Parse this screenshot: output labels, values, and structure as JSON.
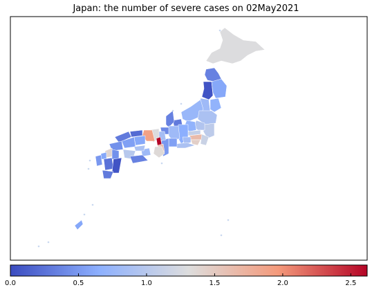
{
  "chart_data": {
    "type": "heatmap",
    "title": "Japan: the number of severe cases on 02May2021",
    "colormap": "coolwarm",
    "colorbar": {
      "range": [
        0.0,
        2.62
      ],
      "ticks": [
        0.0,
        0.5,
        1.0,
        1.5,
        2.0,
        2.5
      ],
      "tick_labels": [
        "0.0",
        "0.5",
        "1.0",
        "1.5",
        "2.0",
        "2.5"
      ],
      "orientation": "horizontal",
      "placement": "bottom"
    },
    "regions": [
      {
        "name": "Hokkaido",
        "value": 1.3
      },
      {
        "name": "Aomori",
        "value": 0.35
      },
      {
        "name": "Akita",
        "value": 0.05
      },
      {
        "name": "Iwate",
        "value": 0.6
      },
      {
        "name": "Yamagata",
        "value": 0.8
      },
      {
        "name": "Miyagi",
        "value": 0.7
      },
      {
        "name": "Niigata",
        "value": 0.75
      },
      {
        "name": "Fukushima",
        "value": 0.9
      },
      {
        "name": "Ibaraki",
        "value": 1.05
      },
      {
        "name": "Tochigi",
        "value": 0.95
      },
      {
        "name": "Gunma",
        "value": 0.7
      },
      {
        "name": "Saitama",
        "value": 1.1
      },
      {
        "name": "Tokyo",
        "value": 1.65
      },
      {
        "name": "Chiba",
        "value": 1.15
      },
      {
        "name": "Kanagawa",
        "value": 1.45
      },
      {
        "name": "Toyama",
        "value": 0.3
      },
      {
        "name": "Ishikawa",
        "value": 0.35
      },
      {
        "name": "Fukui",
        "value": 0.4
      },
      {
        "name": "Nagano",
        "value": 0.65
      },
      {
        "name": "Yamanashi",
        "value": 0.85
      },
      {
        "name": "Gifu",
        "value": 0.8
      },
      {
        "name": "Shizuoka",
        "value": 0.9
      },
      {
        "name": "Aichi",
        "value": 0.55
      },
      {
        "name": "Mie",
        "value": 0.5
      },
      {
        "name": "Shiga",
        "value": 0.85
      },
      {
        "name": "Kyoto",
        "value": 1.3
      },
      {
        "name": "Osaka",
        "value": 2.62
      },
      {
        "name": "Hyogo",
        "value": 1.9
      },
      {
        "name": "Nara",
        "value": 1.6
      },
      {
        "name": "Wakayama",
        "value": 1.35
      },
      {
        "name": "Tottori",
        "value": 0.2
      },
      {
        "name": "Shimane",
        "value": 0.3
      },
      {
        "name": "Okayama",
        "value": 0.6
      },
      {
        "name": "Hiroshima",
        "value": 0.55
      },
      {
        "name": "Yamaguchi",
        "value": 0.45
      },
      {
        "name": "Tokushima",
        "value": 0.8
      },
      {
        "name": "Kagawa",
        "value": 0.9
      },
      {
        "name": "Ehime",
        "value": 1.0
      },
      {
        "name": "Kochi",
        "value": 0.35
      },
      {
        "name": "Fukuoka",
        "value": 1.4
      },
      {
        "name": "Saga",
        "value": 0.6
      },
      {
        "name": "Nagasaki",
        "value": 0.5
      },
      {
        "name": "Kumamoto",
        "value": 0.25
      },
      {
        "name": "Oita",
        "value": 0.45
      },
      {
        "name": "Miyazaki",
        "value": 0.05
      },
      {
        "name": "Kagoshima",
        "value": 0.3
      },
      {
        "name": "Okinawa",
        "value": 0.6
      }
    ]
  }
}
